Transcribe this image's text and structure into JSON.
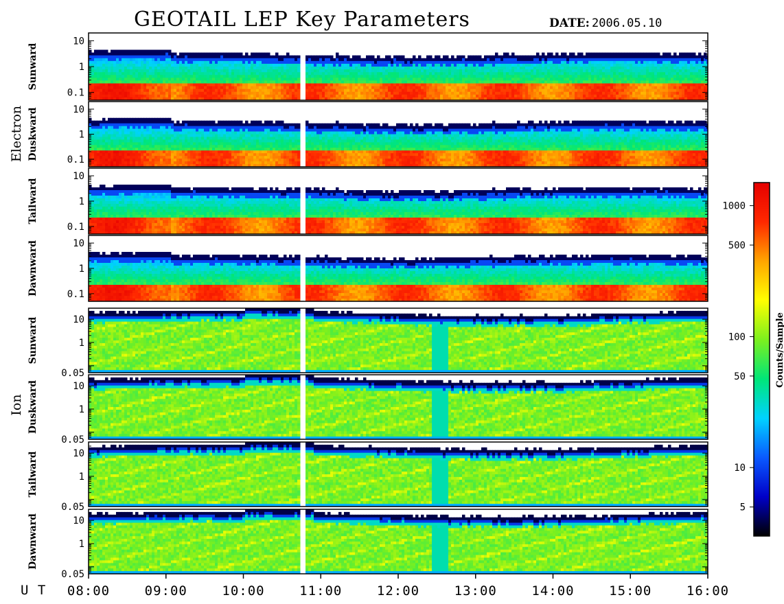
{
  "title": "GEOTAIL LEP Key Parameters",
  "date_label": "DATE:",
  "date_value": "2006.05.10",
  "ut_label": "U T",
  "colorbar": {
    "label": "Counts/Sample",
    "ticks": [
      "1000",
      "500",
      "100",
      "50",
      "10",
      "5"
    ],
    "tick_values": [
      1000,
      500,
      100,
      50,
      10,
      5
    ],
    "range": [
      3,
      1500
    ],
    "scale": "log",
    "colormap": [
      "#000000",
      "#0000c8",
      "#0a5aff",
      "#00d2ff",
      "#00e678",
      "#7cf01e",
      "#ffff00",
      "#ffa500",
      "#ff2800",
      "#e60000"
    ]
  },
  "chart_data": {
    "type": "heatmap",
    "title": "GEOTAIL LEP Key Parameters",
    "date": "2006.05.10",
    "x_axis": {
      "label": "U T",
      "ticks": [
        "08:00",
        "09:00",
        "10:00",
        "11:00",
        "12:00",
        "13:00",
        "14:00",
        "15:00",
        "16:00"
      ],
      "range": [
        "08:00",
        "16:00"
      ]
    },
    "data_gap": {
      "start": "10:45",
      "end": "10:48"
    },
    "panels": [
      {
        "species": "Electron",
        "direction": "Sunward",
        "yscale": "log",
        "ylim": [
          0.05,
          20
        ],
        "yticks": [
          "10",
          "1",
          "0.1"
        ],
        "ytick_values": [
          10,
          1,
          0.1
        ]
      },
      {
        "species": "Electron",
        "direction": "Duskward",
        "yscale": "log",
        "ylim": [
          0.05,
          20
        ],
        "yticks": [
          "10",
          "1",
          "0.1"
        ],
        "ytick_values": [
          10,
          1,
          0.1
        ]
      },
      {
        "species": "Electron",
        "direction": "Tailward",
        "yscale": "log",
        "ylim": [
          0.05,
          20
        ],
        "yticks": [
          "10",
          "1",
          "0.1"
        ],
        "ytick_values": [
          10,
          1,
          0.1
        ]
      },
      {
        "species": "Electron",
        "direction": "Dawnward",
        "yscale": "log",
        "ylim": [
          0.05,
          20
        ],
        "yticks": [
          "10",
          "1",
          "0.1"
        ],
        "ytick_values": [
          10,
          1,
          0.1
        ]
      },
      {
        "species": "Ion",
        "direction": "Sunward",
        "yscale": "log",
        "ylim": [
          0.05,
          30
        ],
        "yticks": [
          "10",
          "1",
          "0.05"
        ],
        "ytick_values": [
          10,
          1,
          0.05
        ]
      },
      {
        "species": "Ion",
        "direction": "Duskward",
        "yscale": "log",
        "ylim": [
          0.05,
          30
        ],
        "yticks": [
          "10",
          "1",
          "0.05"
        ],
        "ytick_values": [
          10,
          1,
          0.05
        ]
      },
      {
        "species": "Ion",
        "direction": "Tailward",
        "yscale": "log",
        "ylim": [
          0.05,
          30
        ],
        "yticks": [
          "10",
          "1",
          "0.05"
        ],
        "ytick_values": [
          10,
          1,
          0.05
        ]
      },
      {
        "species": "Ion",
        "direction": "Dawnward",
        "yscale": "log",
        "ylim": [
          0.05,
          30
        ],
        "yticks": [
          "10",
          "1",
          "0.05"
        ],
        "ytick_values": [
          10,
          1,
          0.05
        ]
      }
    ],
    "groups": [
      {
        "label": "Electron"
      },
      {
        "label": "Ion"
      }
    ]
  }
}
